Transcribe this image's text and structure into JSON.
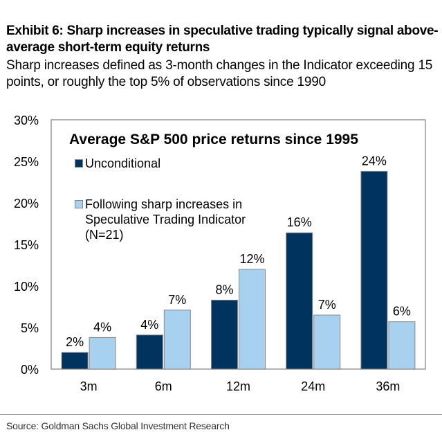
{
  "title": "Exhibit 6: Sharp increases in speculative trading typically signal above-average short-term equity returns",
  "subtitle": "Sharp increases defined as 3-month changes in the Indicator exceeding 15 points, or roughly the top 5% of observations since 1990",
  "source": "Source: Goldman Sachs Global Investment Research",
  "chart_data": {
    "type": "bar",
    "title": "Average S&P 500 price returns since 1995",
    "categories": [
      "3m",
      "6m",
      "12m",
      "24m",
      "36m"
    ],
    "series": [
      {
        "name": "Unconditional",
        "values": [
          2.0,
          4.1,
          8.3,
          16.4,
          23.8
        ],
        "labels": [
          "2%",
          "4%",
          "8%",
          "16%",
          "24%"
        ],
        "color": "#00335e"
      },
      {
        "name": "Following sharp increases in Speculative Trading Indicator (N=21)",
        "values": [
          3.8,
          7.1,
          12.0,
          6.5,
          5.7
        ],
        "labels": [
          "4%",
          "7%",
          "12%",
          "7%",
          "6%"
        ],
        "color": "#a8d0ef"
      }
    ],
    "legend_lines": [
      "Following sharp increases in",
      "Speculative Trading Indicator",
      "(N=21)"
    ],
    "yticks": [
      "0%",
      "5%",
      "10%",
      "15%",
      "20%",
      "25%",
      "30%"
    ],
    "ylim": [
      0,
      30
    ],
    "grid": false,
    "legend_position": "top-left"
  }
}
